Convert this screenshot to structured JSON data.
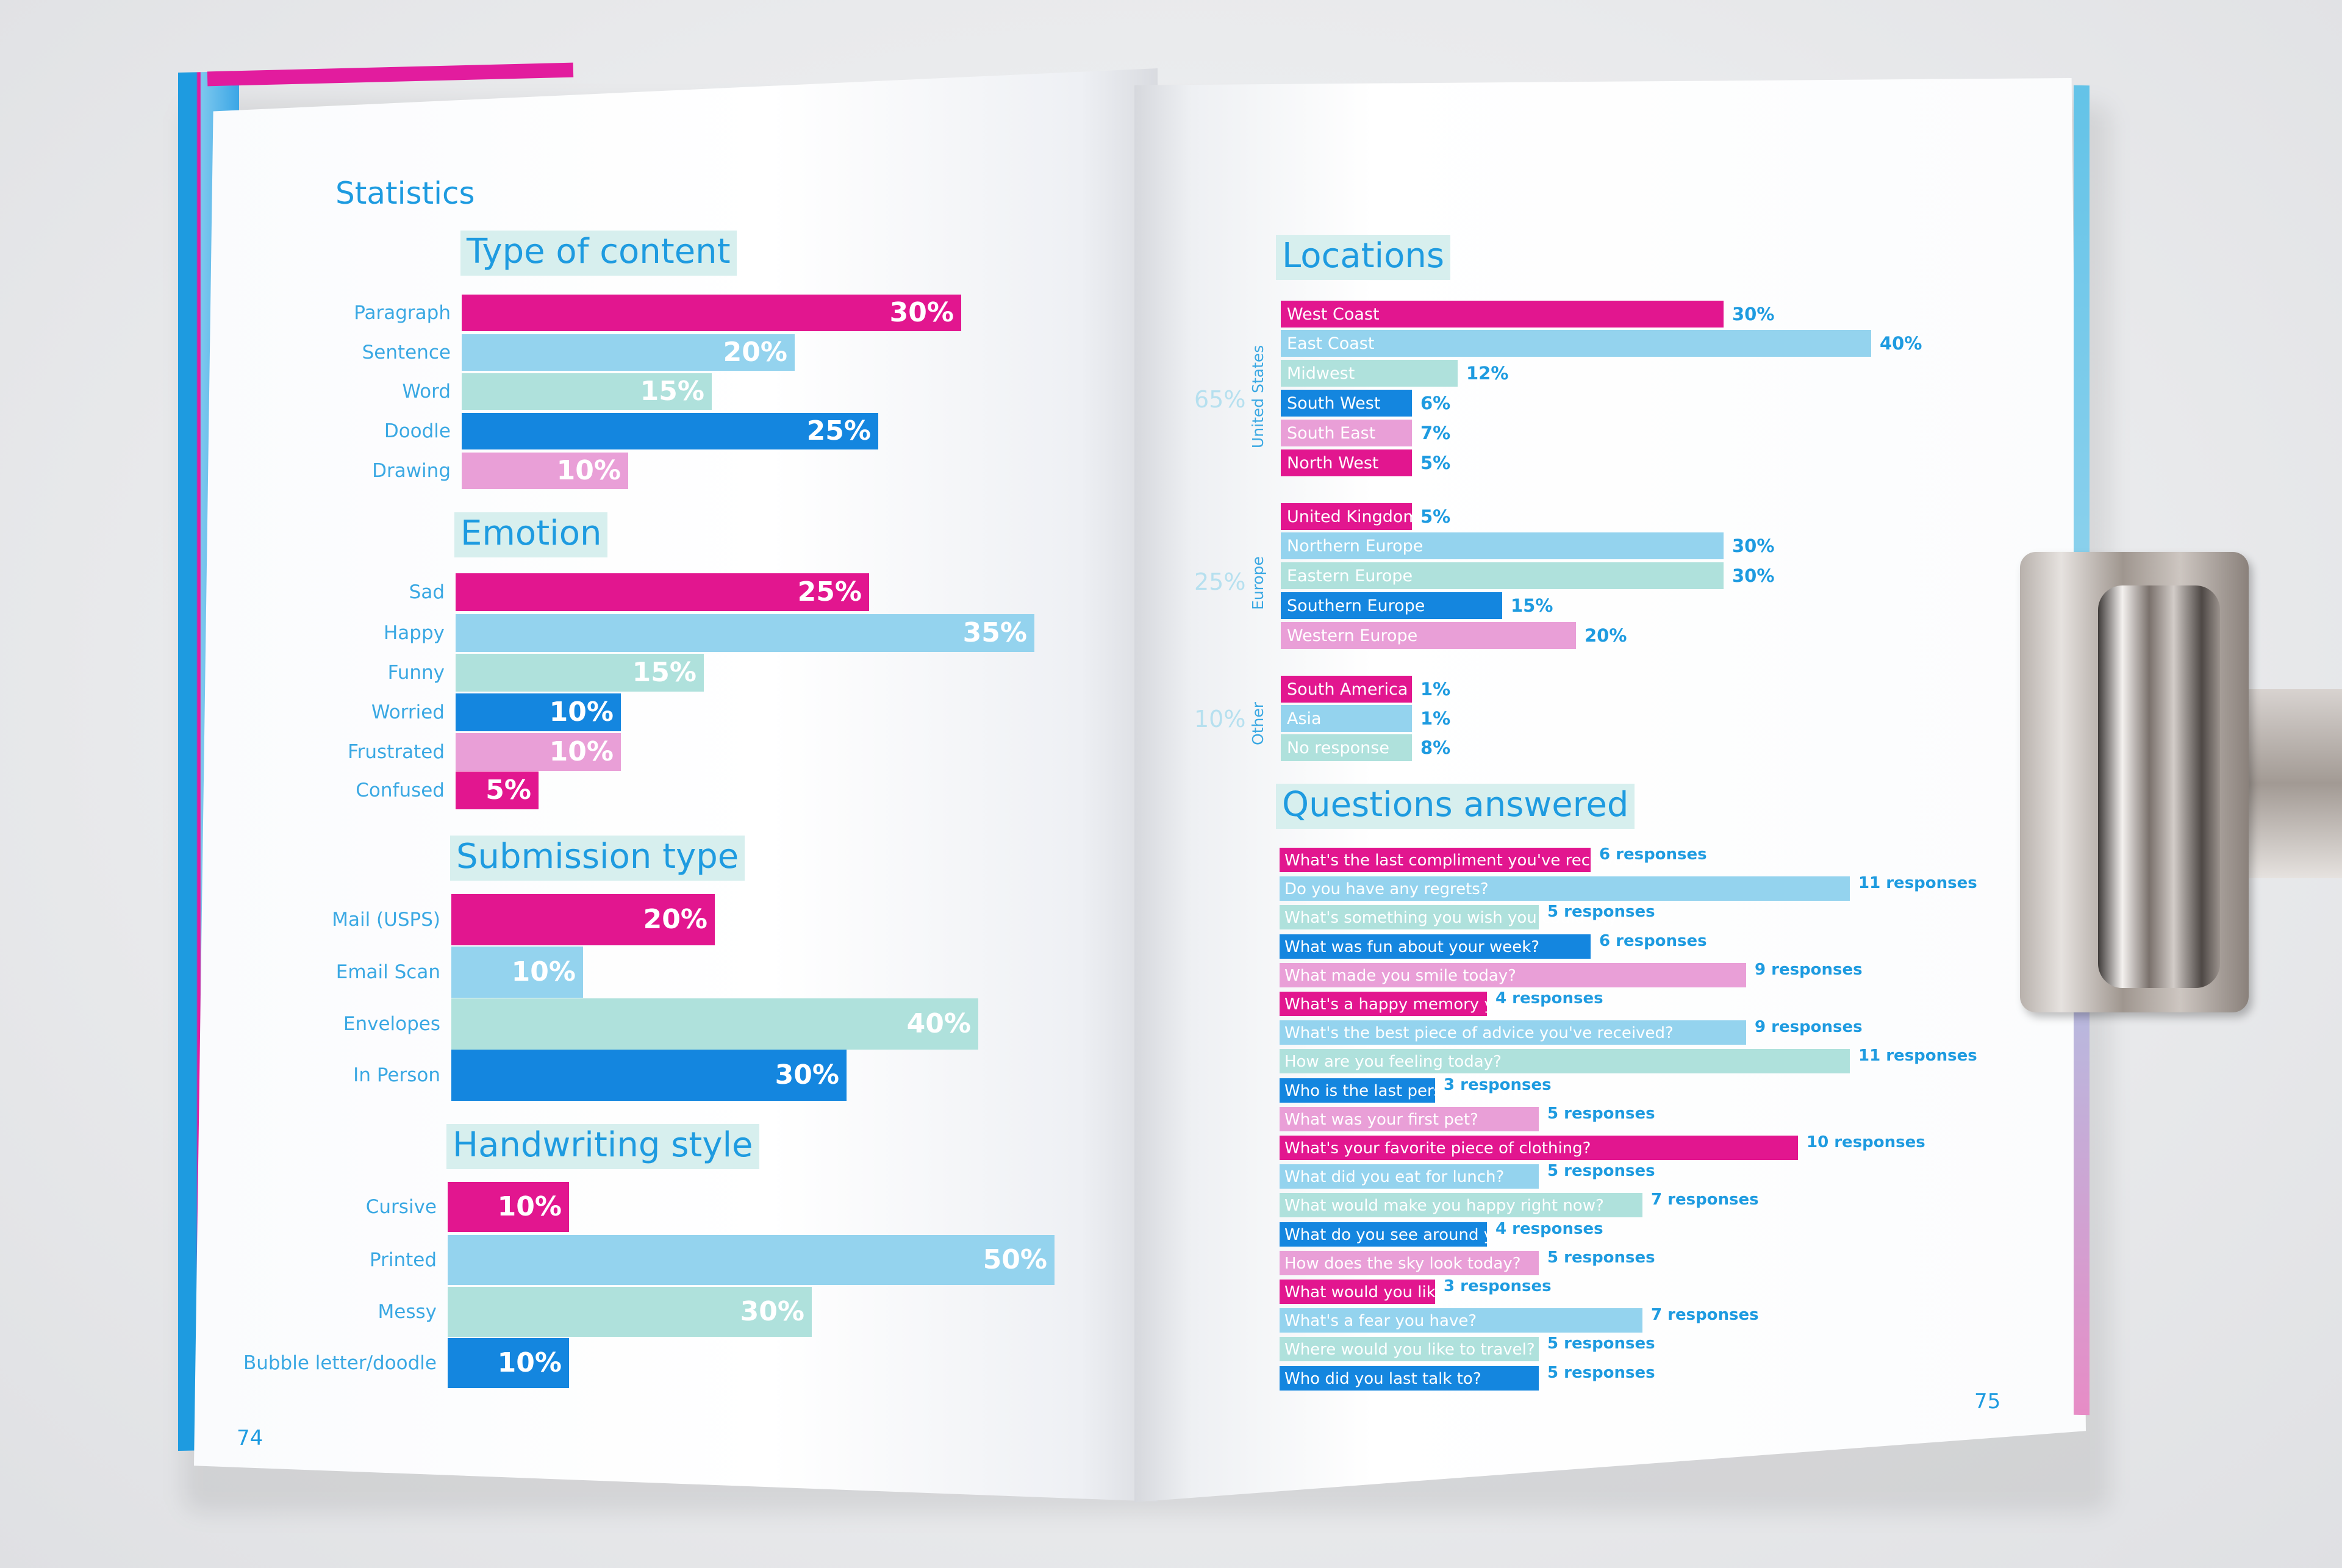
{
  "colors": {
    "magenta": "#e2168f",
    "light_blue": "#94d3ee",
    "mint": "#afe1dc",
    "blue": "#1486df",
    "pink": "#e99fd7",
    "title_blue": "#1e9be0"
  },
  "left_page": {
    "header": "Statistics",
    "page_number": "74",
    "sections": [
      {
        "title": "Type of content",
        "items": [
          {
            "label": "Paragraph",
            "value": "30%",
            "pct": 30,
            "color": "#e2168f"
          },
          {
            "label": "Sentence",
            "value": "20%",
            "pct": 20,
            "color": "#94d3ee"
          },
          {
            "label": "Word",
            "value": "15%",
            "pct": 15,
            "color": "#afe1dc"
          },
          {
            "label": "Doodle",
            "value": "25%",
            "pct": 25,
            "color": "#1486df"
          },
          {
            "label": "Drawing",
            "value": "10%",
            "pct": 10,
            "color": "#e99fd7"
          }
        ]
      },
      {
        "title": "Emotion",
        "items": [
          {
            "label": "Sad",
            "value": "25%",
            "pct": 25,
            "color": "#e2168f"
          },
          {
            "label": "Happy",
            "value": "35%",
            "pct": 35,
            "color": "#94d3ee"
          },
          {
            "label": "Funny",
            "value": "15%",
            "pct": 15,
            "color": "#afe1dc"
          },
          {
            "label": "Worried",
            "value": "10%",
            "pct": 10,
            "color": "#1486df"
          },
          {
            "label": "Frustrated",
            "value": "10%",
            "pct": 10,
            "color": "#e99fd7"
          },
          {
            "label": "Confused",
            "value": "5%",
            "pct": 5,
            "color": "#e2168f"
          }
        ]
      },
      {
        "title": "Submission type",
        "items": [
          {
            "label": "Mail (USPS)",
            "value": "20%",
            "pct": 20,
            "color": "#e2168f"
          },
          {
            "label": "Email Scan",
            "value": "10%",
            "pct": 10,
            "color": "#94d3ee"
          },
          {
            "label": "Envelopes",
            "value": "40%",
            "pct": 40,
            "color": "#afe1dc"
          },
          {
            "label": "In Person",
            "value": "30%",
            "pct": 30,
            "color": "#1486df"
          }
        ]
      },
      {
        "title": "Handwriting style",
        "items": [
          {
            "label": "Cursive",
            "value": "10%",
            "pct": 10,
            "color": "#e2168f"
          },
          {
            "label": "Printed",
            "value": "50%",
            "pct": 50,
            "color": "#94d3ee"
          },
          {
            "label": "Messy",
            "value": "30%",
            "pct": 30,
            "color": "#afe1dc"
          },
          {
            "label": "Bubble letter/doodle",
            "value": "10%",
            "pct": 10,
            "color": "#1486df"
          }
        ]
      }
    ]
  },
  "right_page": {
    "page_number": "75",
    "locations": {
      "title": "Locations",
      "groups": [
        {
          "share": "65%",
          "name": "United States",
          "items": [
            {
              "label": "West Coast",
              "value": "30%",
              "pct": 30,
              "color": "#e2168f"
            },
            {
              "label": "East Coast",
              "value": "40%",
              "pct": 40,
              "color": "#94d3ee"
            },
            {
              "label": "Midwest",
              "value": "12%",
              "pct": 12,
              "color": "#afe1dc"
            },
            {
              "label": "South West",
              "value": "6%",
              "pct": 6,
              "color": "#1486df"
            },
            {
              "label": "South East",
              "value": "7%",
              "pct": 7,
              "color": "#e99fd7"
            },
            {
              "label": "North West",
              "value": "5%",
              "pct": 5,
              "color": "#e2168f"
            }
          ]
        },
        {
          "share": "25%",
          "name": "Europe",
          "items": [
            {
              "label": "United Kingdom",
              "value": "5%",
              "pct": 5,
              "color": "#e2168f"
            },
            {
              "label": "Northern Europe",
              "value": "30%",
              "pct": 30,
              "color": "#94d3ee"
            },
            {
              "label": "Eastern Europe",
              "value": "30%",
              "pct": 30,
              "color": "#afe1dc"
            },
            {
              "label": "Southern Europe",
              "value": "15%",
              "pct": 15,
              "color": "#1486df"
            },
            {
              "label": "Western Europe",
              "value": "20%",
              "pct": 20,
              "color": "#e99fd7"
            }
          ]
        },
        {
          "share": "10%",
          "name": "Other",
          "items": [
            {
              "label": "South America",
              "value": "1%",
              "pct": 1,
              "color": "#e2168f"
            },
            {
              "label": "Asia",
              "value": "1%",
              "pct": 1,
              "color": "#94d3ee"
            },
            {
              "label": "No response",
              "value": "8%",
              "pct": 8,
              "color": "#afe1dc"
            }
          ]
        }
      ]
    },
    "questions": {
      "title": "Questions answered",
      "items": [
        {
          "label": "What's the last compliment you've received?",
          "value": "6 responses",
          "n": 6,
          "color": "#e2168f"
        },
        {
          "label": "Do you have any regrets?",
          "value": "11 responses",
          "n": 11,
          "color": "#94d3ee"
        },
        {
          "label": "What's something you wish you could say?",
          "value": "5 responses",
          "n": 5,
          "color": "#afe1dc"
        },
        {
          "label": "What was fun about your week?",
          "value": "6 responses",
          "n": 6,
          "color": "#1486df"
        },
        {
          "label": "What made you smile today?",
          "value": "9 responses",
          "n": 9,
          "color": "#e99fd7"
        },
        {
          "label": "What's a happy memory you have?",
          "value": "4 responses",
          "n": 4,
          "color": "#e2168f"
        },
        {
          "label": "What's the best piece of advice you've received?",
          "value": "9 responses",
          "n": 9,
          "color": "#94d3ee"
        },
        {
          "label": "How are you feeling today?",
          "value": "11 responses",
          "n": 11,
          "color": "#afe1dc"
        },
        {
          "label": "Who is the last person you met?",
          "value": "3 responses",
          "n": 3,
          "color": "#1486df"
        },
        {
          "label": "What was your first pet?",
          "value": "5 responses",
          "n": 5,
          "color": "#e99fd7"
        },
        {
          "label": "What's your favorite piece of clothing?",
          "value": "10 responses",
          "n": 10,
          "color": "#e2168f"
        },
        {
          "label": "What did you eat for lunch?",
          "value": "5 responses",
          "n": 5,
          "color": "#94d3ee"
        },
        {
          "label": "What would make you happy right now?",
          "value": "7 responses",
          "n": 7,
          "color": "#afe1dc"
        },
        {
          "label": "What do you see around you?",
          "value": "4 responses",
          "n": 4,
          "color": "#1486df"
        },
        {
          "label": "How does the sky look today?",
          "value": "5 responses",
          "n": 5,
          "color": "#e99fd7"
        },
        {
          "label": "What would you like to change?",
          "value": "3 responses",
          "n": 3,
          "color": "#e2168f"
        },
        {
          "label": "What's a fear you have?",
          "value": "7 responses",
          "n": 7,
          "color": "#94d3ee"
        },
        {
          "label": "Where would you like to travel?",
          "value": "5 responses",
          "n": 5,
          "color": "#afe1dc"
        },
        {
          "label": "Who did you last talk to?",
          "value": "5 responses",
          "n": 5,
          "color": "#1486df"
        }
      ]
    }
  }
}
